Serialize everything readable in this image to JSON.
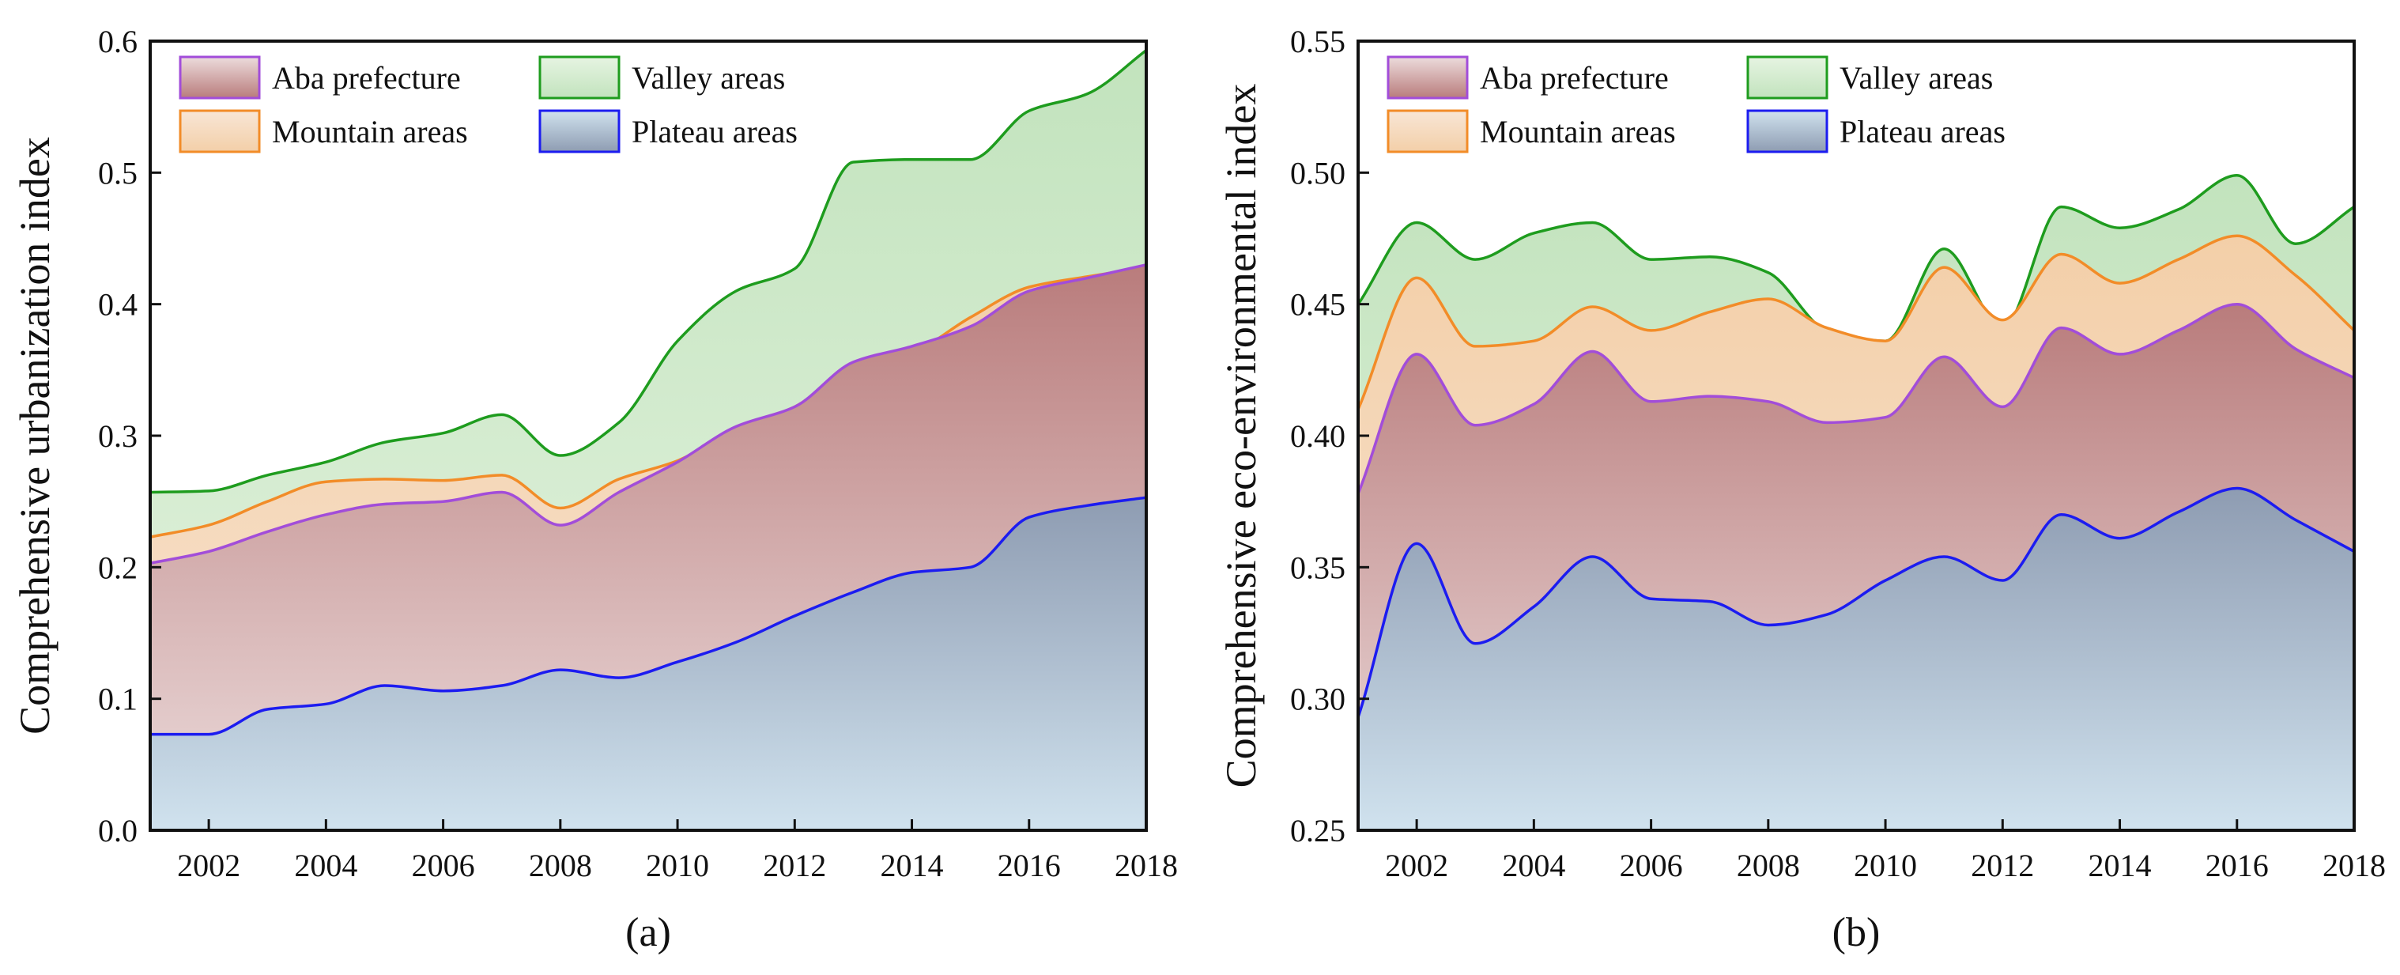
{
  "chart_data": [
    {
      "type": "area",
      "panel_label": "(a)",
      "title": "",
      "xlabel": "",
      "ylabel": "Comprehensive urbanization index",
      "xlim": [
        2001,
        2018
      ],
      "ylim": [
        0.0,
        0.6
      ],
      "x_ticks": [
        2002,
        2004,
        2006,
        2008,
        2010,
        2012,
        2014,
        2016,
        2018
      ],
      "x_tick_labels": [
        "2002",
        "2004",
        "2006",
        "2008",
        "2010",
        "2012",
        "2014",
        "2016",
        "2018"
      ],
      "y_ticks": [
        0.0,
        0.1,
        0.2,
        0.3,
        0.4,
        0.5,
        0.6
      ],
      "y_tick_labels": [
        "0.0",
        "0.1",
        "0.2",
        "0.3",
        "0.4",
        "0.5",
        "0.6"
      ],
      "grid": false,
      "legend_position": "top-left",
      "x": [
        2001,
        2002,
        2003,
        2004,
        2005,
        2006,
        2007,
        2008,
        2009,
        2010,
        2011,
        2012,
        2013,
        2014,
        2015,
        2016,
        2017,
        2018
      ],
      "series": [
        {
          "name": "Valley areas",
          "values": [
            0.257,
            0.258,
            0.27,
            0.28,
            0.295,
            0.302,
            0.316,
            0.285,
            0.31,
            0.372,
            0.41,
            0.427,
            0.508,
            0.51,
            0.51,
            0.547,
            0.56,
            0.593
          ]
        },
        {
          "name": "Mountain areas",
          "values": [
            0.223,
            0.232,
            0.25,
            0.265,
            0.267,
            0.266,
            0.27,
            0.245,
            0.267,
            0.281,
            0.305,
            0.322,
            0.352,
            0.363,
            0.39,
            0.413,
            0.421,
            0.428
          ]
        },
        {
          "name": "Aba prefecture",
          "values": [
            0.203,
            0.212,
            0.227,
            0.24,
            0.248,
            0.25,
            0.257,
            0.232,
            0.257,
            0.28,
            0.307,
            0.322,
            0.356,
            0.368,
            0.383,
            0.41,
            0.42,
            0.43
          ]
        },
        {
          "name": "Plateau areas",
          "values": [
            0.073,
            0.073,
            0.092,
            0.096,
            0.11,
            0.106,
            0.11,
            0.122,
            0.116,
            0.128,
            0.143,
            0.163,
            0.181,
            0.196,
            0.2,
            0.238,
            0.247,
            0.253
          ]
        }
      ],
      "legend": [
        "Aba prefecture",
        "Mountain areas",
        "Valley areas",
        "Plateau areas"
      ]
    },
    {
      "type": "area",
      "panel_label": "(b)",
      "title": "",
      "xlabel": "",
      "ylabel": "Comprehensive eco-environmental index",
      "xlim": [
        2001,
        2018
      ],
      "ylim": [
        0.25,
        0.55
      ],
      "x_ticks": [
        2002,
        2004,
        2006,
        2008,
        2010,
        2012,
        2014,
        2016,
        2018
      ],
      "x_tick_labels": [
        "2002",
        "2004",
        "2006",
        "2008",
        "2010",
        "2012",
        "2014",
        "2016",
        "2018"
      ],
      "y_ticks": [
        0.25,
        0.3,
        0.35,
        0.4,
        0.45,
        0.5,
        0.55
      ],
      "y_tick_labels": [
        "0.25",
        "0.30",
        "0.35",
        "0.40",
        "0.45",
        "0.50",
        "0.55"
      ],
      "grid": false,
      "legend_position": "top-left",
      "x": [
        2001,
        2002,
        2003,
        2004,
        2005,
        2006,
        2007,
        2008,
        2009,
        2010,
        2011,
        2012,
        2013,
        2014,
        2015,
        2016,
        2017,
        2018
      ],
      "series": [
        {
          "name": "Valley areas",
          "values": [
            0.45,
            0.481,
            0.467,
            0.477,
            0.481,
            0.467,
            0.468,
            0.462,
            0.44,
            0.436,
            0.471,
            0.441,
            0.487,
            0.479,
            0.486,
            0.499,
            0.473,
            0.487
          ]
        },
        {
          "name": "Mountain areas",
          "values": [
            0.41,
            0.46,
            0.434,
            0.436,
            0.449,
            0.44,
            0.447,
            0.452,
            0.441,
            0.436,
            0.464,
            0.444,
            0.469,
            0.458,
            0.467,
            0.476,
            0.461,
            0.44
          ]
        },
        {
          "name": "Aba prefecture",
          "values": [
            0.378,
            0.431,
            0.404,
            0.412,
            0.432,
            0.413,
            0.415,
            0.413,
            0.405,
            0.407,
            0.43,
            0.411,
            0.441,
            0.431,
            0.44,
            0.45,
            0.433,
            0.422
          ]
        },
        {
          "name": "Plateau areas",
          "values": [
            0.293,
            0.359,
            0.321,
            0.335,
            0.354,
            0.338,
            0.337,
            0.328,
            0.332,
            0.345,
            0.354,
            0.345,
            0.37,
            0.361,
            0.371,
            0.38,
            0.368,
            0.356
          ]
        }
      ],
      "legend": [
        "Aba prefecture",
        "Mountain areas",
        "Valley areas",
        "Plateau areas"
      ]
    }
  ],
  "colors": {
    "Valley areas": {
      "line": "#1e9c1e",
      "fill_top": "#c2e3bd",
      "fill_bottom": "#e6f4e2"
    },
    "Mountain areas": {
      "line": "#f28c28",
      "fill_top": "#f3cfa8",
      "fill_bottom": "#f8e6d6"
    },
    "Aba prefecture": {
      "line": "#a24dd9",
      "fill_top": "#b97c7c",
      "fill_bottom": "#ecdcdc"
    },
    "Plateau areas": {
      "line": "#1c1cf0",
      "fill_top": "#8e9cb2",
      "fill_bottom": "#d0e2ee"
    }
  }
}
